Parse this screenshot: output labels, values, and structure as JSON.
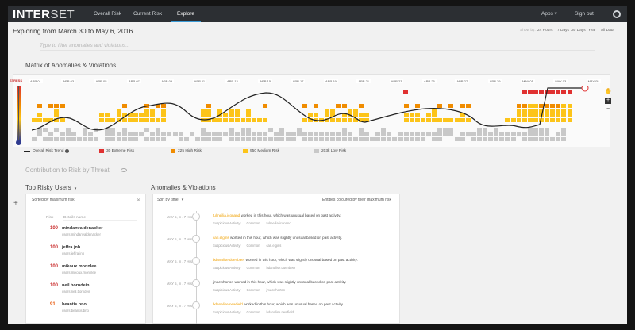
{
  "app": {
    "logo_bold": "INTER",
    "logo_light": "SET"
  },
  "nav": {
    "tabs": [
      {
        "label": "Overall Risk"
      },
      {
        "label": "Current Risk"
      },
      {
        "label": "Explore"
      }
    ],
    "apps_label": "Apps",
    "signout_label": "Sign out",
    "settings_icon": "gear-icon"
  },
  "explore": {
    "title": "Exploring from March 30 to May 6, 2016",
    "filter_placeholder": "Type to filter anomalies and violations...",
    "ranges": {
      "prefix": "Show by:",
      "options": [
        "24 Hours",
        "7 Days",
        "30 Days",
        "Year",
        "All Data"
      ]
    }
  },
  "matrix": {
    "title": "Matrix of Anomalies & Violations",
    "axis_label": "STRESS",
    "dates": [
      "APR 01",
      "APR 03",
      "APR 05",
      "APR 07",
      "APR 09",
      "APR 11",
      "APR 13",
      "APR 15",
      "APR 17",
      "APR 19",
      "APR 21",
      "APR 23",
      "APR 25",
      "APR 27",
      "APR 29",
      "MAY 01",
      "MAY 03",
      "MAY 05"
    ],
    "legend": {
      "trend": "Overall Risk Trend",
      "extreme": "30 Extreme Risk",
      "high": "225 High Risk",
      "medium": "950 Medium Risk",
      "low": "203k Low Risk"
    },
    "colors": {
      "extreme": "#e03131",
      "high": "#f08c00",
      "medium": "#fcc419",
      "low": "#c8c8c8"
    },
    "zoom_in": "+",
    "zoom_out": "−"
  },
  "contribution": {
    "title": "Contribution to Risk by Threat"
  },
  "risky_users": {
    "title": "Top Risky Users",
    "sort_label": "Sorted by maximum risk",
    "columns": {
      "risk": "Risk",
      "details": "Details name"
    },
    "users": [
      {
        "score": "100",
        "name": "mindanvaldenacker",
        "sub": "users    mindanvaldenacker"
      },
      {
        "score": "100",
        "name": "jeffra.jnb",
        "sub": "users    jeffra.jnb"
      },
      {
        "score": "100",
        "name": "mikoux.monnlee",
        "sub": "users    mikoux.monnlee"
      },
      {
        "score": "100",
        "name": "neil.borndein",
        "sub": "users    neil.borndein"
      },
      {
        "score": "91",
        "name": "beantis.bno",
        "sub": "users    beantis.bno"
      }
    ]
  },
  "anomalies": {
    "title": "Anomalies & Violations",
    "sort_label": "Sort by time",
    "right_label": "Entities coloured by their maximum risk",
    "events": [
      {
        "time": "MAY 5, in . 7 Hrs",
        "who": "tulmeilia.iconand",
        "text": " worked in this hour, which was unusual based on past activity.",
        "tags": [
          "Suspicious Activity",
          "Common",
          "tulmeilia.iconand"
        ]
      },
      {
        "time": "MAY 5, in . 7 Hrs",
        "who": "cari.elgins",
        "text": " worked in this hour, which was slightly unusual based on past activity.",
        "tags": [
          "Suspicious Activity",
          "Common",
          "cari.elgins"
        ]
      },
      {
        "time": "MAY 5, in . 7 Hrs",
        "who": "bdanalise.duenbeer",
        "text": " worked in this hour, which was slightly unusual based on past activity.",
        "tags": [
          "Suspicious Activity",
          "Common",
          "bdanalise.duenbeer"
        ]
      },
      {
        "time": "MAY 5, in . 7 Hrs",
        "who": "",
        "text": "jmacwhorton worked in this hour, which was slightly unusual based on past activity.",
        "tags": [
          "Suspicious Activity",
          "Common",
          "jmacwhorton"
        ]
      },
      {
        "time": "MAY 5, in . 7 Hrs",
        "who": "bdanalise.newfield",
        "text": " worked in this hour, which was unusual based on past activity.",
        "tags": [
          "Suspicious Activity",
          "Common",
          "bdanalise.newfield"
        ]
      }
    ]
  }
}
